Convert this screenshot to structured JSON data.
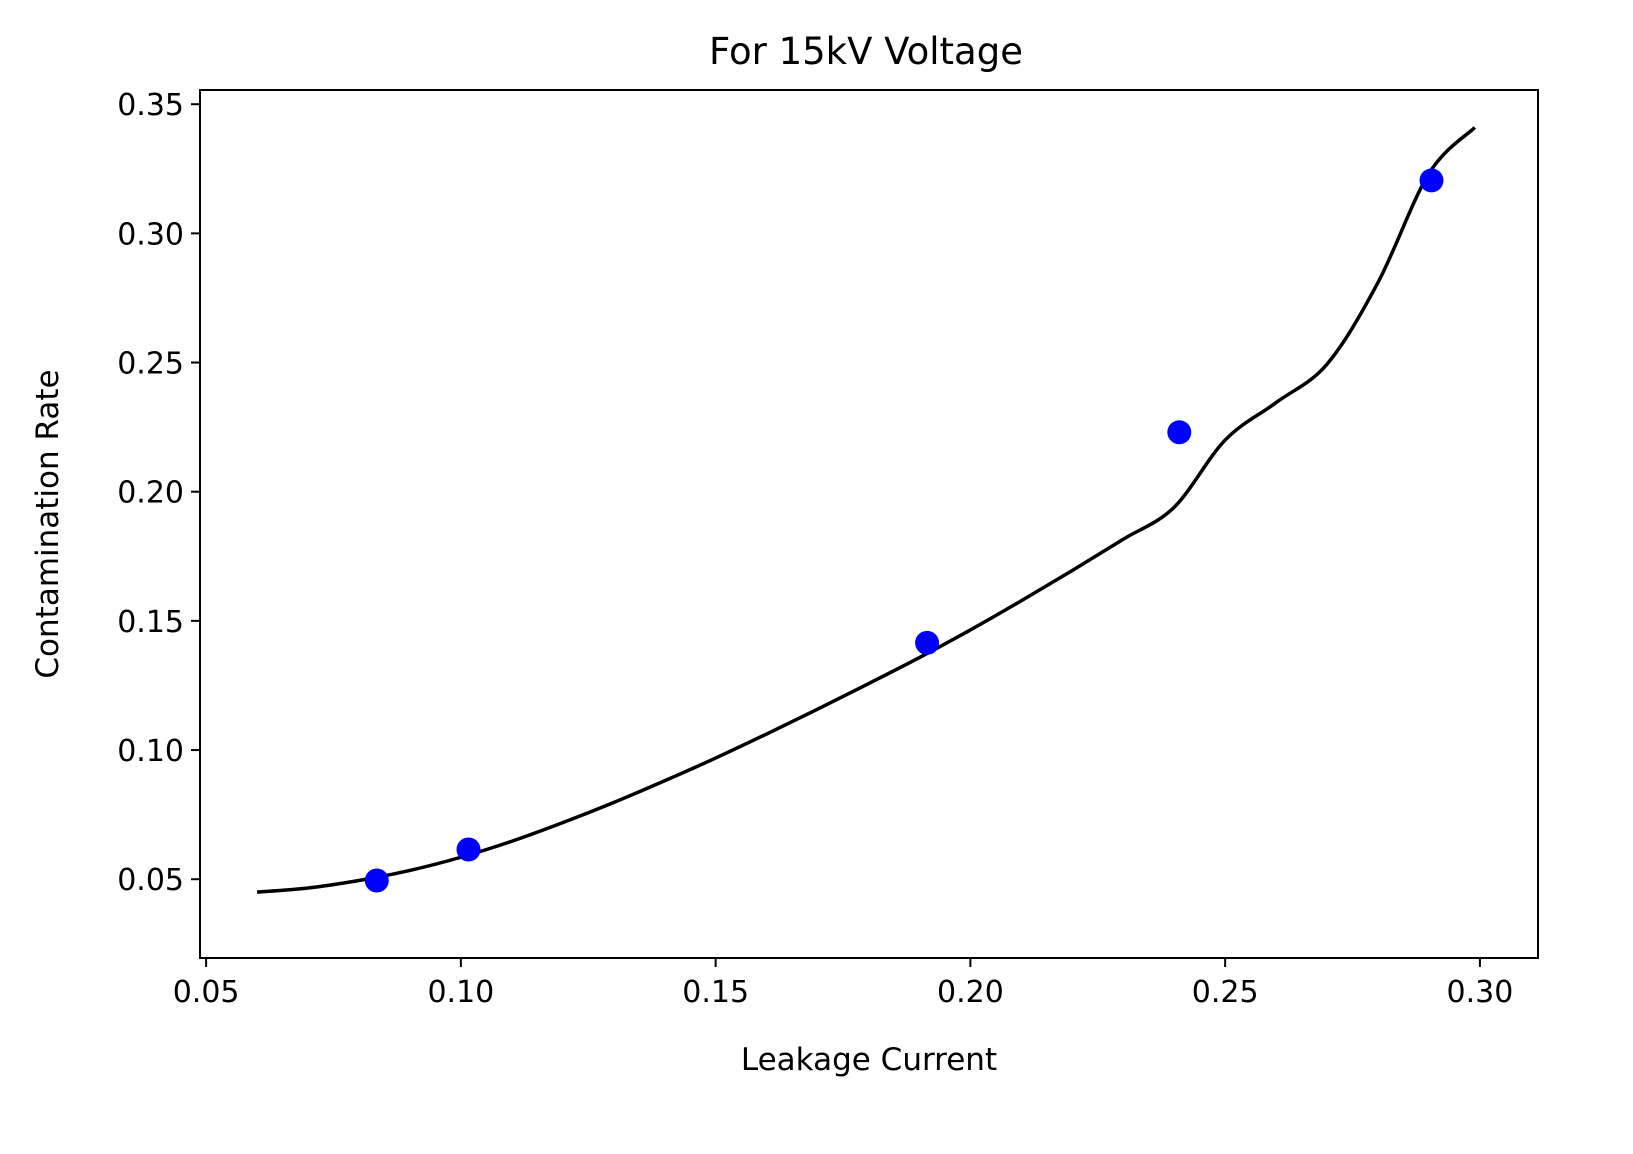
{
  "chart_data": {
    "type": "scatter",
    "title": "For 15kV Voltage",
    "xlabel": "Leakage Current",
    "ylabel": "Contamination Rate",
    "xlim": [
      0.0488,
      0.3114
    ],
    "ylim": [
      0.0195,
      0.3555
    ],
    "x_ticks": [
      "0.05",
      "0.10",
      "0.15",
      "0.20",
      "0.25",
      "0.30"
    ],
    "y_ticks": [
      "0.05",
      "0.10",
      "0.15",
      "0.20",
      "0.25",
      "0.30",
      "0.35"
    ],
    "grid": false,
    "series": [
      {
        "kind": "points",
        "color": "#0000ff",
        "x": [
          0.0835,
          0.1015,
          0.1915,
          0.241,
          0.2905
        ],
        "y": [
          0.0495,
          0.0615,
          0.1415,
          0.223,
          0.3205
        ]
      },
      {
        "kind": "fit-curve",
        "color": "#000000",
        "x": [
          0.06,
          0.07,
          0.08,
          0.09,
          0.1,
          0.11,
          0.12,
          0.13,
          0.14,
          0.15,
          0.16,
          0.17,
          0.18,
          0.19,
          0.2,
          0.21,
          0.22,
          0.23,
          0.24,
          0.25,
          0.26,
          0.27,
          0.28,
          0.29,
          0.299
        ],
        "y": [
          0.045,
          0.0466,
          0.0495,
          0.0534,
          0.0585,
          0.0647,
          0.0719,
          0.0797,
          0.0881,
          0.0969,
          0.1062,
          0.1158,
          0.1257,
          0.1358,
          0.1465,
          0.1578,
          0.1695,
          0.1816,
          0.194,
          0.22,
          0.2345,
          0.2494,
          0.281,
          0.3232,
          0.341
        ]
      }
    ]
  }
}
